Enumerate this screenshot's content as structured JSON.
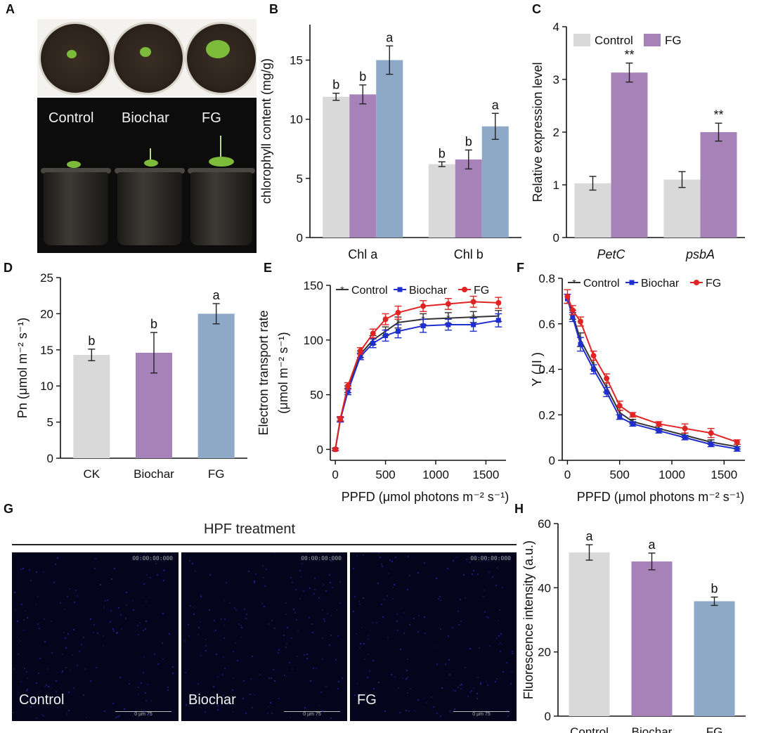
{
  "panel_labels": [
    "A",
    "B",
    "C",
    "D",
    "E",
    "F",
    "G",
    "H"
  ],
  "panel_a": {
    "labels": [
      "Control",
      "Biochar",
      "FG"
    ]
  },
  "panel_g": {
    "title": "HPF treatment",
    "images": [
      {
        "label": "Control",
        "timestamp": "00:00:00:000",
        "scale": "0   µm   75"
      },
      {
        "label": "Biochar",
        "timestamp": "00:00:00:000",
        "scale": "0   µm   75"
      },
      {
        "label": "FG",
        "timestamp": "00:00:00:000",
        "scale": "0   µm   75"
      }
    ]
  },
  "colors": {
    "gray": "#d9d9d9",
    "purple": "#a682b8",
    "blue": "#8ea9c8",
    "line_black": "#333333",
    "line_blue": "#1f2fcf",
    "line_red": "#e02424"
  },
  "chart_data": [
    {
      "id": "B",
      "type": "bar",
      "ylabel": "chlorophyll content (mg/g)",
      "xlabel": "",
      "ylim": [
        0,
        18
      ],
      "yticks": [
        0,
        5,
        10,
        15
      ],
      "categories": [
        "Chl a",
        "Chl b"
      ],
      "series": [
        {
          "values": [
            11.9,
            6.2
          ],
          "errors": [
            0.3,
            0.2
          ],
          "letters": [
            "b",
            "b"
          ],
          "color": "#d9d9d9"
        },
        {
          "values": [
            12.1,
            6.6
          ],
          "errors": [
            0.8,
            0.8
          ],
          "letters": [
            "b",
            "b"
          ],
          "color": "#a682b8"
        },
        {
          "values": [
            15.0,
            9.4
          ],
          "errors": [
            1.2,
            1.1
          ],
          "letters": [
            "a",
            "a"
          ],
          "color": "#8ea9c8"
        }
      ]
    },
    {
      "id": "C",
      "type": "bar",
      "ylabel": "Relative expression level",
      "xlabel": "",
      "ylim": [
        0,
        4
      ],
      "yticks": [
        0,
        1,
        2,
        3,
        4
      ],
      "categories": [
        "PetC",
        "psbA"
      ],
      "italic_categories": true,
      "legend": {
        "position": "top-left"
      },
      "series": [
        {
          "name": "Control",
          "values": [
            1.03,
            1.1
          ],
          "errors": [
            0.13,
            0.15
          ],
          "letters": [
            "",
            ""
          ],
          "color": "#d9d9d9"
        },
        {
          "name": "FG",
          "values": [
            3.13,
            2.0
          ],
          "errors": [
            0.18,
            0.17
          ],
          "letters": [
            "**",
            "**"
          ],
          "color": "#a682b8"
        }
      ]
    },
    {
      "id": "D",
      "type": "bar",
      "ylabel": "Pn (μmol m⁻² s⁻¹)",
      "xlabel": "",
      "ylim": [
        0,
        25
      ],
      "yticks": [
        0,
        5,
        10,
        15,
        20,
        25
      ],
      "categories": [
        "CK",
        "Biochar",
        "FG"
      ],
      "values": [
        14.3,
        14.6,
        20.0
      ],
      "errors": [
        0.8,
        2.8,
        1.4
      ],
      "letters": [
        "b",
        "b",
        "a"
      ],
      "colors": [
        "#d9d9d9",
        "#a682b8",
        "#8ea9c8"
      ]
    },
    {
      "id": "E",
      "type": "line",
      "ylabel": "Electron transport rate (μmol m⁻² s⁻¹)",
      "xlabel": "PPFD (μmol photons m⁻² s⁻¹)",
      "xlim": [
        -50,
        1700
      ],
      "ylim": [
        -10,
        150
      ],
      "xticks": [
        0,
        500,
        1000,
        1500
      ],
      "yticks": [
        0,
        50,
        100,
        150
      ],
      "legend": {
        "position": "top"
      },
      "x": [
        0,
        50,
        125,
        250,
        375,
        500,
        625,
        875,
        1125,
        1375,
        1625
      ],
      "series": [
        {
          "name": "Control",
          "color": "#333333",
          "marker": "star",
          "values": [
            0,
            28,
            55,
            87,
            100,
            108,
            116,
            119,
            120,
            121,
            122
          ],
          "errors": [
            1,
            2,
            3,
            3,
            4,
            4,
            5,
            5,
            5,
            5,
            5
          ]
        },
        {
          "name": "Biochar",
          "color": "#1f2fcf",
          "marker": "square",
          "values": [
            0,
            27,
            53,
            85,
            97,
            104,
            108,
            113,
            114,
            114,
            118
          ],
          "errors": [
            1,
            2,
            3,
            3,
            4,
            5,
            6,
            6,
            5,
            6,
            6
          ]
        },
        {
          "name": "FG",
          "color": "#e02424",
          "marker": "circle",
          "values": [
            0,
            28,
            58,
            90,
            106,
            119,
            125,
            131,
            133,
            135,
            134
          ],
          "errors": [
            1,
            2,
            3,
            3,
            4,
            5,
            6,
            5,
            5,
            5,
            5
          ]
        }
      ]
    },
    {
      "id": "F",
      "type": "line",
      "ylabel": "Y ( II )",
      "xlabel": "PPFD (μmol photons m⁻² s⁻¹)",
      "xlim": [
        -50,
        1700
      ],
      "ylim": [
        0.0,
        0.8
      ],
      "xticks": [
        0,
        500,
        1000,
        1500
      ],
      "yticks": [
        0.0,
        0.2,
        0.4,
        0.6,
        0.8
      ],
      "legend": {
        "position": "top"
      },
      "x": [
        0,
        50,
        125,
        250,
        375,
        500,
        625,
        875,
        1125,
        1375,
        1625
      ],
      "series": [
        {
          "name": "Control",
          "color": "#333333",
          "marker": "star",
          "values": [
            0.71,
            0.64,
            0.53,
            0.42,
            0.32,
            0.21,
            0.17,
            0.14,
            0.11,
            0.08,
            0.06
          ],
          "errors": [
            0.02,
            0.02,
            0.03,
            0.02,
            0.02,
            0.01,
            0.01,
            0.01,
            0.01,
            0.01,
            0.01
          ]
        },
        {
          "name": "Biochar",
          "color": "#1f2fcf",
          "marker": "square",
          "values": [
            0.71,
            0.63,
            0.51,
            0.4,
            0.3,
            0.19,
            0.16,
            0.13,
            0.1,
            0.07,
            0.05
          ],
          "errors": [
            0.02,
            0.02,
            0.03,
            0.02,
            0.02,
            0.01,
            0.01,
            0.01,
            0.01,
            0.01,
            0.01
          ]
        },
        {
          "name": "FG",
          "color": "#e02424",
          "marker": "circle",
          "values": [
            0.72,
            0.66,
            0.61,
            0.46,
            0.36,
            0.24,
            0.2,
            0.16,
            0.14,
            0.12,
            0.08
          ],
          "errors": [
            0.03,
            0.02,
            0.02,
            0.02,
            0.02,
            0.02,
            0.01,
            0.01,
            0.02,
            0.02,
            0.01
          ]
        }
      ]
    },
    {
      "id": "H",
      "type": "bar",
      "ylabel": "Fluorescence intensity (a.u.)",
      "xlabel": "",
      "ylim": [
        0,
        60
      ],
      "yticks": [
        0,
        20,
        40,
        60
      ],
      "categories": [
        "Control",
        "Biochar",
        "FG"
      ],
      "values": [
        51.0,
        48.2,
        35.8
      ],
      "errors": [
        2.4,
        2.6,
        1.3
      ],
      "letters": [
        "a",
        "a",
        "b"
      ],
      "colors": [
        "#d9d9d9",
        "#a682b8",
        "#8ea9c8"
      ]
    }
  ]
}
